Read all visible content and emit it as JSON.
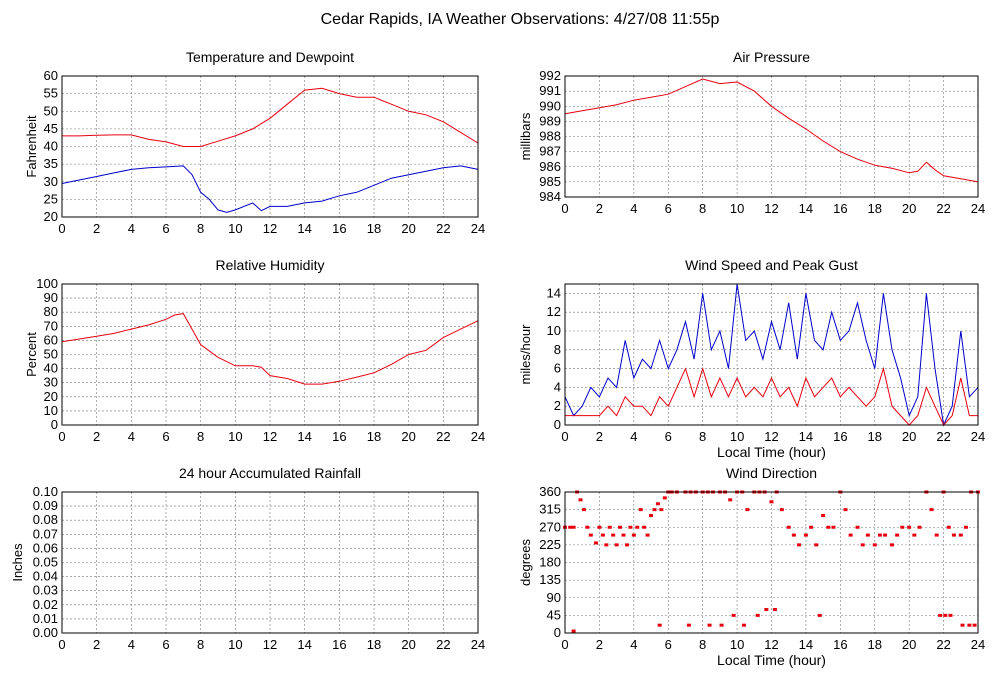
{
  "page_title": "Cedar Rapids, IA Weather Observations: 4/27/08 11:55p",
  "colors": {
    "primary": "#e8000f",
    "secondary": "#0000cc",
    "grid": "#777777",
    "axis": "#000000"
  },
  "chart_data": [
    {
      "id": "temp",
      "type": "line",
      "title": "Temperature and Dewpoint",
      "ylabel": "Fahrenheit",
      "xlabel": "",
      "xlim": [
        0,
        24
      ],
      "ylim": [
        20,
        60
      ],
      "xticks": [
        0,
        2,
        4,
        6,
        8,
        10,
        12,
        14,
        16,
        18,
        20,
        22,
        24
      ],
      "yticks": [
        20,
        25,
        30,
        35,
        40,
        45,
        50,
        55,
        60
      ],
      "series": [
        {
          "color": "#e8000f",
          "x": [
            0,
            1,
            2,
            3,
            4,
            5,
            6,
            7,
            8,
            9,
            10,
            11,
            12,
            13,
            14,
            15,
            16,
            17,
            18,
            19,
            20,
            21,
            22,
            23,
            24
          ],
          "y": [
            43,
            43,
            43.2,
            43.3,
            43.3,
            42,
            41.3,
            40,
            40,
            41.5,
            43,
            45,
            48,
            52,
            56,
            56.5,
            55,
            54,
            54,
            52,
            50,
            49,
            47,
            44,
            41
          ]
        },
        {
          "color": "#0000cc",
          "x": [
            0,
            1,
            2,
            3,
            4,
            5,
            6,
            7,
            7.5,
            8,
            8.5,
            9,
            9.5,
            10,
            11,
            11.5,
            12,
            13,
            14,
            15,
            16,
            17,
            18,
            19,
            20,
            21,
            22,
            23,
            24
          ],
          "y": [
            29.5,
            30.5,
            31.5,
            32.5,
            33.5,
            34,
            34.2,
            34.5,
            32,
            27,
            25,
            22,
            21.3,
            22,
            24,
            21.8,
            23,
            23,
            24,
            24.5,
            26,
            27,
            29,
            31,
            32,
            33,
            34,
            34.5,
            33.5
          ]
        }
      ]
    },
    {
      "id": "pressure",
      "type": "line",
      "title": "Air Pressure",
      "ylabel": "millibars",
      "xlabel": "",
      "xlim": [
        0,
        24
      ],
      "ylim": [
        984,
        992
      ],
      "xticks": [
        0,
        2,
        4,
        6,
        8,
        10,
        12,
        14,
        16,
        18,
        20,
        22,
        24
      ],
      "yticks": [
        984,
        985,
        986,
        987,
        988,
        989,
        990,
        991,
        992
      ],
      "series": [
        {
          "color": "#e8000f",
          "x": [
            0,
            1,
            2,
            3,
            4,
            5,
            6,
            7,
            8,
            9,
            10,
            11,
            12,
            13,
            14,
            15,
            16,
            17,
            18,
            19,
            20,
            20.5,
            21,
            21.5,
            22,
            23,
            24
          ],
          "y": [
            989.5,
            989.7,
            989.9,
            990.1,
            990.4,
            990.6,
            990.8,
            991.3,
            991.8,
            991.5,
            991.6,
            991.0,
            990.0,
            989.2,
            988.5,
            987.7,
            987.0,
            986.5,
            986.1,
            985.9,
            985.6,
            985.7,
            986.3,
            985.8,
            985.4,
            985.2,
            985.0
          ]
        }
      ]
    },
    {
      "id": "humidity",
      "type": "line",
      "title": "Relative Humidity",
      "ylabel": "Percent",
      "xlabel": "",
      "xlim": [
        0,
        24
      ],
      "ylim": [
        0,
        100
      ],
      "xticks": [
        0,
        2,
        4,
        6,
        8,
        10,
        12,
        14,
        16,
        18,
        20,
        22,
        24
      ],
      "yticks": [
        0,
        10,
        20,
        30,
        40,
        50,
        60,
        70,
        80,
        90,
        100
      ],
      "series": [
        {
          "color": "#e8000f",
          "x": [
            0,
            1,
            2,
            3,
            4,
            5,
            6,
            6.5,
            7,
            7.5,
            8,
            9,
            10,
            11,
            11.5,
            12,
            13,
            14,
            15,
            16,
            17,
            18,
            19,
            20,
            21,
            22,
            23,
            24
          ],
          "y": [
            59,
            61,
            63,
            65,
            68,
            71,
            75,
            78,
            79,
            68,
            57,
            48,
            42,
            42,
            41,
            35,
            33,
            29,
            29,
            31,
            34,
            37,
            43,
            50,
            53,
            62,
            68,
            74
          ]
        }
      ]
    },
    {
      "id": "wind",
      "type": "line",
      "title": "Wind Speed and Peak Gust",
      "ylabel": "miles/hour",
      "xlabel": "Local Time (hour)",
      "xlim": [
        0,
        24
      ],
      "ylim": [
        0,
        15
      ],
      "xticks": [
        0,
        2,
        4,
        6,
        8,
        10,
        12,
        14,
        16,
        18,
        20,
        22,
        24
      ],
      "yticks": [
        0,
        2,
        4,
        6,
        8,
        10,
        12,
        14
      ],
      "series": [
        {
          "color": "#0000cc",
          "x": [
            0,
            0.5,
            1,
            1.5,
            2,
            2.5,
            3,
            3.5,
            4,
            4.5,
            5,
            5.5,
            6,
            6.5,
            7,
            7.5,
            8,
            8.5,
            9,
            9.5,
            10,
            10.5,
            11,
            11.5,
            12,
            12.5,
            13,
            13.5,
            14,
            14.5,
            15,
            15.5,
            16,
            16.5,
            17,
            17.5,
            18,
            18.5,
            19,
            19.5,
            20,
            20.5,
            21,
            21.5,
            22,
            22.5,
            23,
            23.5,
            24
          ],
          "y": [
            3,
            1,
            2,
            4,
            3,
            5,
            4,
            9,
            5,
            7,
            6,
            9,
            6,
            8,
            11,
            7,
            14,
            8,
            10,
            6,
            15,
            9,
            10,
            7,
            11,
            8,
            13,
            7,
            14,
            9,
            8,
            12,
            9,
            10,
            13,
            9,
            6,
            14,
            8,
            5,
            1,
            3,
            14,
            6,
            0,
            2,
            10,
            3,
            4
          ]
        },
        {
          "color": "#e8000f",
          "x": [
            0,
            0.5,
            1,
            1.5,
            2,
            2.5,
            3,
            3.5,
            4,
            4.5,
            5,
            5.5,
            6,
            6.5,
            7,
            7.5,
            8,
            8.5,
            9,
            9.5,
            10,
            10.5,
            11,
            11.5,
            12,
            12.5,
            13,
            13.5,
            14,
            14.5,
            15,
            15.5,
            16,
            16.5,
            17,
            17.5,
            18,
            18.5,
            19,
            19.5,
            20,
            20.5,
            21,
            21.5,
            22,
            22.5,
            23,
            23.5,
            24
          ],
          "y": [
            1,
            1,
            1,
            1,
            1,
            2,
            1,
            3,
            2,
            2,
            1,
            3,
            2,
            4,
            6,
            3,
            6,
            3,
            5,
            3,
            5,
            3,
            4,
            3,
            5,
            3,
            4,
            2,
            5,
            3,
            4,
            5,
            3,
            4,
            3,
            2,
            3,
            6,
            2,
            1,
            0,
            1,
            4,
            2,
            0,
            1,
            5,
            1,
            1
          ]
        }
      ]
    },
    {
      "id": "rain",
      "type": "line",
      "title": "24 hour Accumulated Rainfall",
      "ylabel": "Inches",
      "xlabel": "",
      "xlim": [
        0,
        24
      ],
      "ylim": [
        0,
        0.1
      ],
      "xticks": [
        0,
        2,
        4,
        6,
        8,
        10,
        12,
        14,
        16,
        18,
        20,
        22,
        24
      ],
      "yticks": [
        "0.00",
        "0.01",
        "0.02",
        "0.03",
        "0.04",
        "0.05",
        "0.06",
        "0.07",
        "0.08",
        "0.09",
        "0.10"
      ],
      "series": [
        {
          "color": "#e8000f",
          "x": [
            0,
            24
          ],
          "y": [
            0,
            0
          ]
        }
      ]
    },
    {
      "id": "direction",
      "type": "scatter",
      "title": "Wind Direction",
      "ylabel": "degrees",
      "xlabel": "Local Time (hour)",
      "xlim": [
        0,
        24
      ],
      "ylim": [
        0,
        360
      ],
      "xticks": [
        0,
        2,
        4,
        6,
        8,
        10,
        12,
        14,
        16,
        18,
        20,
        22,
        24
      ],
      "yticks": [
        0,
        45,
        90,
        135,
        180,
        225,
        270,
        315,
        360
      ],
      "series": [
        {
          "color": "#e8000f",
          "x": [
            0,
            0.3,
            0.5,
            0.7,
            0.9,
            1.1,
            1.3,
            1.5,
            1.8,
            2.0,
            2.2,
            2.4,
            2.6,
            2.8,
            3.0,
            3.2,
            3.4,
            3.6,
            3.8,
            4.0,
            4.2,
            4.4,
            4.6,
            4.8,
            5.0,
            5.2,
            5.4,
            5.6,
            5.8,
            6.0,
            6.2,
            6.5,
            7.0,
            7.3,
            7.6,
            8.0,
            8.3,
            8.6,
            9.0,
            9.3,
            9.6,
            10.0,
            10.3,
            10.6,
            11.0,
            11.3,
            11.6,
            12.0,
            12.3,
            12.6,
            13.0,
            13.3,
            13.6,
            14.0,
            14.3,
            14.6,
            15.0,
            15.3,
            15.6,
            16.0,
            16.3,
            16.6,
            17.0,
            17.3,
            17.6,
            18.0,
            18.3,
            18.6,
            19.0,
            19.3,
            19.6,
            20.0,
            20.3,
            20.6,
            21.0,
            21.3,
            21.6,
            22.0,
            22.3,
            22.6,
            23.0,
            23.3,
            23.6,
            24.0,
            0.5,
            5.5,
            7.2,
            8.4,
            9.1,
            9.8,
            10.4,
            11.2,
            11.7,
            12.2,
            14.8,
            21.8,
            22.1,
            22.4,
            23.1,
            23.5,
            23.8
          ],
          "y": [
            270,
            270,
            270,
            360,
            340,
            315,
            270,
            250,
            230,
            270,
            250,
            225,
            270,
            250,
            225,
            270,
            250,
            225,
            270,
            250,
            270,
            315,
            270,
            250,
            300,
            315,
            330,
            315,
            345,
            360,
            360,
            360,
            360,
            360,
            360,
            360,
            360,
            360,
            360,
            360,
            340,
            360,
            360,
            315,
            360,
            360,
            360,
            335,
            360,
            315,
            270,
            250,
            225,
            250,
            270,
            225,
            300,
            270,
            270,
            360,
            315,
            250,
            270,
            225,
            250,
            225,
            250,
            250,
            225,
            250,
            270,
            270,
            250,
            270,
            360,
            315,
            250,
            360,
            270,
            250,
            250,
            270,
            360,
            360,
            5,
            20,
            20,
            20,
            20,
            45,
            20,
            45,
            60,
            60,
            45,
            45,
            45,
            45,
            20,
            20,
            20
          ]
        }
      ]
    }
  ]
}
